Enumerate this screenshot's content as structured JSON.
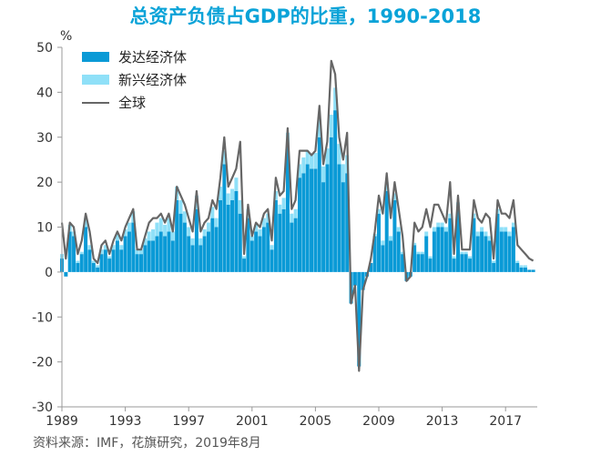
{
  "chart_data": {
    "type": "bar",
    "title": "总资产负债占GDP的比重，1990-2018",
    "ylabel": "%",
    "ylim": [
      -30,
      50
    ],
    "yticks": [
      50,
      40,
      30,
      20,
      10,
      0,
      -10,
      -20,
      -30
    ],
    "xlim": [
      1989,
      2019
    ],
    "xticks": [
      "1989",
      "1993",
      "1997",
      "2001",
      "2005",
      "2009",
      "2013",
      "2017"
    ],
    "grid": false,
    "legend_position": "top-left",
    "x": [
      1989.0,
      1989.25,
      1989.5,
      1989.75,
      1990.0,
      1990.25,
      1990.5,
      1990.75,
      1991.0,
      1991.25,
      1991.5,
      1991.75,
      1992.0,
      1992.25,
      1992.5,
      1992.75,
      1993.0,
      1993.25,
      1993.5,
      1993.75,
      1994.0,
      1994.25,
      1994.5,
      1994.75,
      1995.0,
      1995.25,
      1995.5,
      1995.75,
      1996.0,
      1996.25,
      1996.5,
      1996.75,
      1997.0,
      1997.25,
      1997.5,
      1997.75,
      1998.0,
      1998.25,
      1998.5,
      1998.75,
      1999.0,
      1999.25,
      1999.5,
      1999.75,
      2000.0,
      2000.25,
      2000.5,
      2000.75,
      2001.0,
      2001.25,
      2001.5,
      2001.75,
      2002.0,
      2002.25,
      2002.5,
      2002.75,
      2003.0,
      2003.25,
      2003.5,
      2003.75,
      2004.0,
      2004.25,
      2004.5,
      2004.75,
      2005.0,
      2005.25,
      2005.5,
      2005.75,
      2006.0,
      2006.25,
      2006.5,
      2006.75,
      2007.0,
      2007.25,
      2007.5,
      2007.75,
      2008.0,
      2008.25,
      2008.5,
      2008.75,
      2009.0,
      2009.25,
      2009.5,
      2009.75,
      2010.0,
      2010.25,
      2010.5,
      2010.75,
      2011.0,
      2011.25,
      2011.5,
      2011.75,
      2012.0,
      2012.25,
      2012.5,
      2012.75,
      2013.0,
      2013.25,
      2013.5,
      2013.75,
      2014.0,
      2014.25,
      2014.5,
      2014.75,
      2015.0,
      2015.25,
      2015.5,
      2015.75,
      2016.0,
      2016.25,
      2016.5,
      2016.75,
      2017.0,
      2017.25,
      2017.5,
      2017.75,
      2018.0,
      2018.25,
      2018.5,
      2018.75
    ],
    "series": [
      {
        "name": "发达经济体",
        "color": "#0a9ad6",
        "values": [
          3,
          -1,
          9,
          8,
          2,
          4,
          10,
          5,
          2,
          1,
          4,
          5,
          3,
          5,
          7,
          5,
          8,
          9,
          11,
          4,
          4,
          6,
          7,
          7,
          8,
          9,
          8,
          9,
          7,
          16,
          13,
          11,
          8,
          6,
          14,
          6,
          8,
          9,
          12,
          10,
          16,
          24,
          15,
          16,
          18,
          13,
          3,
          12,
          7,
          9,
          8,
          10,
          11,
          5,
          16,
          13,
          14,
          28,
          11,
          12,
          21,
          22,
          24,
          23,
          23,
          30,
          20,
          24,
          30,
          36,
          24,
          20,
          22,
          -7,
          -3,
          -21,
          -4,
          -1,
          2,
          8,
          13,
          6,
          18,
          7,
          16,
          9,
          4,
          -2,
          -1,
          6,
          4,
          4,
          8,
          3,
          9,
          10,
          10,
          9,
          12,
          3,
          14,
          4,
          4,
          3,
          12,
          8,
          9,
          8,
          7,
          2,
          13,
          9,
          9,
          8,
          10,
          2,
          1,
          1,
          0.5,
          0.5
        ]
      },
      {
        "name": "新兴经济体",
        "color": "#8fe0f8",
        "values": [
          1,
          0,
          1.5,
          1,
          0.5,
          0.5,
          2,
          1,
          0.5,
          0.5,
          1,
          1,
          0.5,
          1,
          1.5,
          1,
          1.5,
          2,
          2.5,
          1,
          1,
          1.5,
          2,
          2.5,
          3,
          3,
          2.5,
          3,
          2,
          3,
          3,
          2.5,
          2,
          1.5,
          3,
          1.5,
          1.5,
          2,
          2.5,
          2,
          3,
          3,
          2.5,
          2.5,
          3,
          3,
          0.5,
          2,
          1,
          1.5,
          1.5,
          2,
          2,
          1,
          2,
          2,
          2.5,
          3,
          2,
          2,
          3,
          3.5,
          3,
          3,
          3.5,
          4,
          3.5,
          3.5,
          5,
          5,
          4.5,
          4,
          4,
          0,
          0,
          0,
          0,
          0,
          0,
          0.5,
          1,
          1,
          2,
          1,
          1.5,
          1,
          0.5,
          0,
          0,
          0.5,
          0.5,
          0.5,
          1,
          0.5,
          1,
          1,
          1,
          1,
          1,
          0.5,
          1.5,
          0.5,
          0.5,
          0.5,
          1,
          1,
          1,
          1,
          1,
          0.5,
          1,
          1,
          1,
          1,
          1,
          0.5,
          0.5,
          0.5,
          0,
          0
        ]
      },
      {
        "name": "全球",
        "color": "#666666",
        "values": [
          11,
          3,
          11,
          10,
          4,
          7,
          13,
          9,
          3,
          2,
          6,
          7,
          4,
          7,
          9,
          7,
          10,
          12,
          14,
          5,
          5,
          8,
          11,
          12,
          12,
          13,
          11,
          13,
          9,
          19,
          17,
          15,
          12,
          9,
          18,
          9,
          11,
          12,
          16,
          14,
          21,
          30,
          19,
          21,
          23,
          29,
          4,
          15,
          8,
          11,
          10,
          13,
          14,
          7,
          21,
          17,
          18,
          32,
          14,
          16,
          27,
          27,
          27,
          26,
          27,
          37,
          24,
          29,
          47,
          44,
          30,
          25,
          31,
          -7,
          -3,
          -22,
          -4,
          -1,
          3,
          9,
          17,
          13,
          22,
          12,
          20,
          14,
          8,
          -2,
          -1,
          11,
          9,
          10,
          14,
          10,
          15,
          15,
          13,
          11,
          20,
          4,
          17,
          5,
          5,
          5,
          16,
          12,
          11,
          13,
          12,
          3,
          16,
          13,
          13,
          12,
          16,
          6,
          5,
          4,
          3,
          2.5
        ]
      }
    ]
  },
  "source_text": "资料来源：IMF，花旗研究，2019年8月"
}
